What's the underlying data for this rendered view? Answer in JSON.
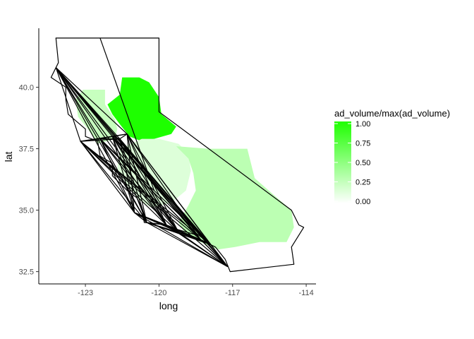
{
  "chart_data": {
    "type": "map",
    "xlabel": "long",
    "ylabel": "lat",
    "xlim": [
      -124.9,
      -113.6
    ],
    "ylim": [
      32.0,
      42.4
    ],
    "x_ticks": [
      -123,
      -120,
      -117,
      -114
    ],
    "x_tick_labels": [
      "-123",
      "-120",
      "-117",
      "-114"
    ],
    "y_ticks": [
      32.5,
      35.0,
      37.5,
      40.0
    ],
    "y_tick_labels": [
      "32.5",
      "35.0",
      "37.5",
      "40.0"
    ],
    "fill_scale": {
      "title": "ad_volume/max(ad_volume)",
      "low_color": "#ffffff",
      "high_color": "#1eff00",
      "range": [
        0,
        1
      ],
      "breaks": [
        1.0,
        0.75,
        0.5,
        0.25,
        0.0
      ],
      "break_labels": [
        "1.00",
        "0.75",
        "0.50",
        "0.25",
        "0.00"
      ]
    },
    "outline_color": "#000000",
    "regions": [
      {
        "value": 0.25,
        "polygon": [
          [
            -123.1,
            39.9
          ],
          [
            -122.2,
            39.9
          ],
          [
            -122.2,
            39.3
          ],
          [
            -121.8,
            38.7
          ],
          [
            -121.7,
            38.3
          ],
          [
            -121.8,
            37.9
          ],
          [
            -122.5,
            37.7
          ],
          [
            -122.9,
            38.3
          ],
          [
            -123.3,
            38.8
          ],
          [
            -123.4,
            39.5
          ]
        ]
      },
      {
        "value": 1.0,
        "polygon": [
          [
            -122.1,
            39.3
          ],
          [
            -121.6,
            39.7
          ],
          [
            -121.5,
            40.4
          ],
          [
            -120.8,
            40.4
          ],
          [
            -120.4,
            40.2
          ],
          [
            -120.0,
            39.6
          ],
          [
            -119.9,
            38.9
          ],
          [
            -119.3,
            38.4
          ],
          [
            -119.5,
            38.1
          ],
          [
            -120.2,
            37.9
          ],
          [
            -120.7,
            37.8
          ],
          [
            -121.2,
            38.0
          ],
          [
            -121.6,
            38.5
          ],
          [
            -121.9,
            38.9
          ]
        ]
      },
      {
        "value": 0.15,
        "polygon": [
          [
            -121.6,
            37.5
          ],
          [
            -120.7,
            37.9
          ],
          [
            -120.0,
            37.9
          ],
          [
            -119.2,
            37.7
          ],
          [
            -118.8,
            37.3
          ],
          [
            -118.7,
            36.6
          ],
          [
            -118.9,
            35.8
          ],
          [
            -119.5,
            35.3
          ],
          [
            -120.3,
            35.1
          ],
          [
            -120.8,
            35.4
          ],
          [
            -121.3,
            36.0
          ],
          [
            -121.7,
            36.7
          ]
        ]
      },
      {
        "value": 0.3,
        "polygon": [
          [
            -119.3,
            37.6
          ],
          [
            -118.0,
            37.5
          ],
          [
            -117.3,
            37.5
          ],
          [
            -116.4,
            37.5
          ],
          [
            -116.1,
            36.3
          ],
          [
            -115.3,
            35.6
          ],
          [
            -114.6,
            35.0
          ],
          [
            -114.5,
            34.3
          ],
          [
            -114.8,
            33.7
          ],
          [
            -115.9,
            33.7
          ],
          [
            -116.9,
            33.5
          ],
          [
            -117.6,
            33.4
          ],
          [
            -118.3,
            33.7
          ],
          [
            -118.9,
            34.0
          ],
          [
            -119.2,
            34.5
          ],
          [
            -118.8,
            35.2
          ],
          [
            -118.5,
            35.8
          ],
          [
            -118.6,
            36.5
          ],
          [
            -118.8,
            37.1
          ]
        ]
      }
    ],
    "state_outline": [
      [
        -124.2,
        42.0
      ],
      [
        -120.0,
        42.0
      ],
      [
        -120.0,
        39.0
      ],
      [
        -114.6,
        35.0
      ],
      [
        -114.3,
        34.4
      ],
      [
        -114.1,
        34.3
      ],
      [
        -114.6,
        33.5
      ],
      [
        -114.5,
        32.8
      ],
      [
        -117.1,
        32.5
      ],
      [
        -117.3,
        33.0
      ],
      [
        -117.7,
        33.5
      ],
      [
        -118.3,
        33.8
      ],
      [
        -118.5,
        34.0
      ],
      [
        -119.2,
        34.2
      ],
      [
        -119.7,
        34.4
      ],
      [
        -120.6,
        34.5
      ],
      [
        -120.7,
        35.1
      ],
      [
        -120.9,
        35.5
      ],
      [
        -121.3,
        35.8
      ],
      [
        -121.9,
        36.4
      ],
      [
        -121.9,
        36.9
      ],
      [
        -122.4,
        37.2
      ],
      [
        -122.5,
        37.8
      ],
      [
        -123.0,
        38.0
      ],
      [
        -123.0,
        38.3
      ],
      [
        -123.7,
        38.9
      ],
      [
        -123.8,
        39.5
      ],
      [
        -123.8,
        40.0
      ],
      [
        -124.4,
        40.4
      ],
      [
        -124.1,
        41.0
      ],
      [
        -124.2,
        42.0
      ]
    ],
    "inner_line": [
      [
        -122.4,
        42.0
      ],
      [
        -120.2,
        35.8
      ]
    ],
    "route_hubs": [
      [
        -124.2,
        40.8
      ],
      [
        -123.2,
        37.8
      ],
      [
        -122.4,
        37.9
      ],
      [
        -121.9,
        38.0
      ],
      [
        -121.6,
        37.9
      ],
      [
        -121.3,
        38.1
      ],
      [
        -118.3,
        33.8
      ],
      [
        -117.9,
        33.6
      ],
      [
        -117.2,
        32.7
      ],
      [
        -119.7,
        34.4
      ],
      [
        -119.2,
        34.1
      ],
      [
        -121.0,
        34.9
      ],
      [
        -120.5,
        34.5
      ]
    ]
  }
}
